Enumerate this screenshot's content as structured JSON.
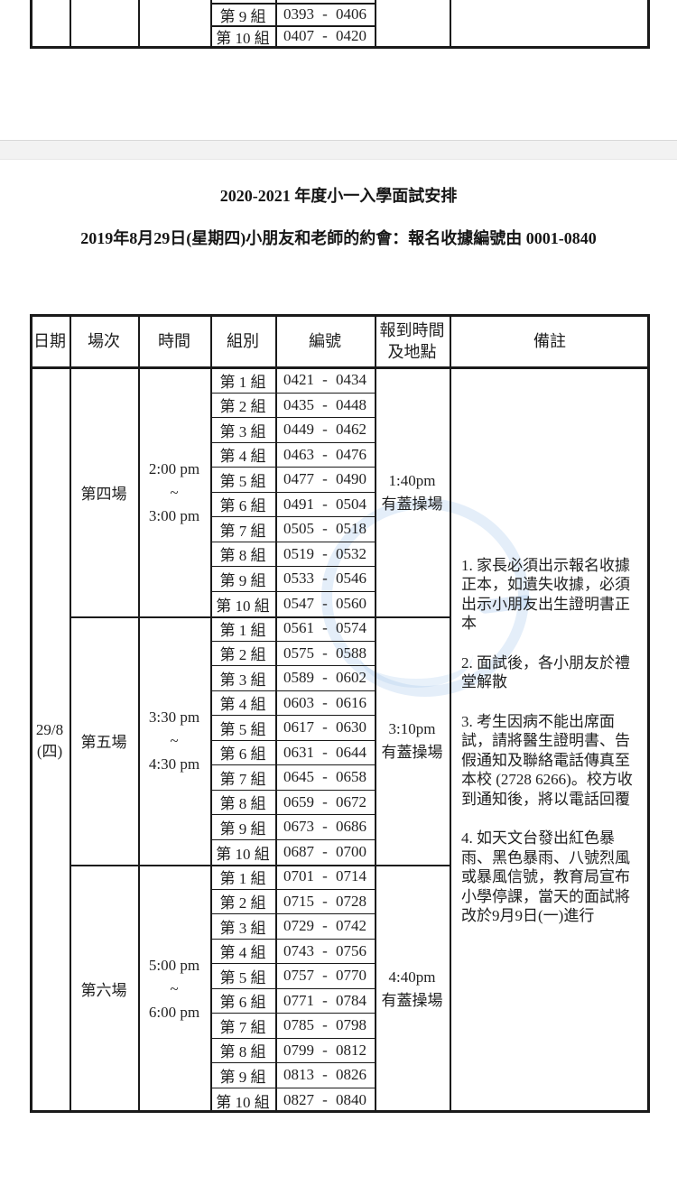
{
  "page": {
    "title": "2020-2021 年度小一入學面試安排",
    "subtitle": "2019年8月29日(星期四)小朋友和老師的約會：報名收據編號由 0001-0840"
  },
  "previous_table_fragment": {
    "rows": [
      {
        "group": "第 9 組",
        "start": "0393",
        "end": "0406"
      },
      {
        "group": "第 10 組",
        "start": "0407",
        "end": "0420"
      }
    ]
  },
  "schedule_table": {
    "headers": {
      "date": "日期",
      "session": "場次",
      "time": "時間",
      "group": "組別",
      "number": "編號",
      "checkin_line1": "報到時間",
      "checkin_line2": "及地點",
      "remarks": "備註"
    },
    "number_separator": "-",
    "date": {
      "line1": "29/8",
      "line2": "(四)"
    },
    "sessions": [
      {
        "name": "第四場",
        "time": [
          "2:00 pm",
          "~",
          "3:00 pm"
        ],
        "checkin": [
          "1:40pm",
          "有蓋操場"
        ],
        "groups": [
          {
            "label": "第 1 組",
            "start": "0421",
            "end": "0434"
          },
          {
            "label": "第 2 組",
            "start": "0435",
            "end": "0448"
          },
          {
            "label": "第 3 組",
            "start": "0449",
            "end": "0462"
          },
          {
            "label": "第 4 組",
            "start": "0463",
            "end": "0476"
          },
          {
            "label": "第 5 組",
            "start": "0477",
            "end": "0490"
          },
          {
            "label": "第 6 組",
            "start": "0491",
            "end": "0504"
          },
          {
            "label": "第 7 組",
            "start": "0505",
            "end": "0518"
          },
          {
            "label": "第 8 組",
            "start": "0519",
            "end": "0532"
          },
          {
            "label": "第 9 組",
            "start": "0533",
            "end": "0546"
          },
          {
            "label": "第 10 組",
            "start": "0547",
            "end": "0560"
          }
        ]
      },
      {
        "name": "第五場",
        "time": [
          "3:30 pm",
          "~",
          "4:30 pm"
        ],
        "checkin": [
          "3:10pm",
          "有蓋操場"
        ],
        "groups": [
          {
            "label": "第 1 組",
            "start": "0561",
            "end": "0574"
          },
          {
            "label": "第 2 組",
            "start": "0575",
            "end": "0588"
          },
          {
            "label": "第 3 組",
            "start": "0589",
            "end": "0602"
          },
          {
            "label": "第 4 組",
            "start": "0603",
            "end": "0616"
          },
          {
            "label": "第 5 組",
            "start": "0617",
            "end": "0630"
          },
          {
            "label": "第 6 組",
            "start": "0631",
            "end": "0644"
          },
          {
            "label": "第 7 組",
            "start": "0645",
            "end": "0658"
          },
          {
            "label": "第 8 組",
            "start": "0659",
            "end": "0672"
          },
          {
            "label": "第 9 組",
            "start": "0673",
            "end": "0686"
          },
          {
            "label": "第 10 組",
            "start": "0687",
            "end": "0700"
          }
        ]
      },
      {
        "name": "第六場",
        "time": [
          "5:00 pm",
          "~",
          "6:00 pm"
        ],
        "checkin": [
          "4:40pm",
          "有蓋操場"
        ],
        "groups": [
          {
            "label": "第 1 組",
            "start": "0701",
            "end": "0714"
          },
          {
            "label": "第 2 組",
            "start": "0715",
            "end": "0728"
          },
          {
            "label": "第 3 組",
            "start": "0729",
            "end": "0742"
          },
          {
            "label": "第 4 組",
            "start": "0743",
            "end": "0756"
          },
          {
            "label": "第 5 組",
            "start": "0757",
            "end": "0770"
          },
          {
            "label": "第 6 組",
            "start": "0771",
            "end": "0784"
          },
          {
            "label": "第 7 組",
            "start": "0785",
            "end": "0798"
          },
          {
            "label": "第 8 組",
            "start": "0799",
            "end": "0812"
          },
          {
            "label": "第 9 組",
            "start": "0813",
            "end": "0826"
          },
          {
            "label": "第 10 組",
            "start": "0827",
            "end": "0840"
          }
        ]
      }
    ],
    "remarks": [
      "1. 家長必須出示報名收據正本，如遺失收據，必須出示小朋友出生證明書正本",
      "2. 面試後，各小朋友於禮堂解散",
      "3. 考生因病不能出席面試，請將醫生證明書、告假通知及聯絡電話傳真至本校 (2728 6266)。校方收到通知後，將以電話回覆",
      "4. 如天文台發出紅色暴雨、黑色暴雨、八號烈風或暴風信號，教育局宣布小學停課，當天的面試將改於9月9日(一)進行"
    ]
  },
  "colors": {
    "table_border": "#1a1a1a",
    "text": "#1f1f1f",
    "page_divider_band": "#f2f2f2",
    "watermark_blue": "#a6c7ec"
  }
}
